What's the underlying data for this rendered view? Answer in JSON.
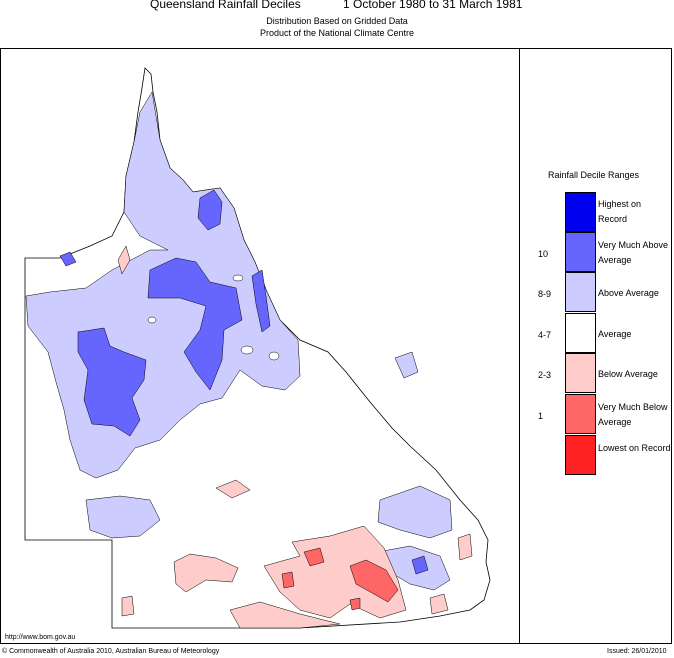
{
  "header": {
    "title": "Queensland Rainfall Deciles",
    "period": "1 October 1980 to 31 March 1981",
    "subtitle1": "Distribution Based on Gridded Data",
    "subtitle2": "Product of the National Climate Centre"
  },
  "legend": {
    "title": "Rainfall Decile Ranges",
    "items": [
      {
        "range": "",
        "label": "Highest on Record",
        "color": "#0000ee"
      },
      {
        "range": "10",
        "label": "Very Much Above Average",
        "color": "#6666ff"
      },
      {
        "range": "8-9",
        "label": "Above Average",
        "color": "#ccccff"
      },
      {
        "range": "4-7",
        "label": "Average",
        "color": "#ffffff"
      },
      {
        "range": "2-3",
        "label": "Below Average",
        "color": "#ffcccc"
      },
      {
        "range": "1",
        "label": "Very Much Below Average",
        "color": "#ff6666"
      },
      {
        "range": "",
        "label": "Lowest on Record",
        "color": "#ff2222"
      }
    ]
  },
  "footer": {
    "url": "http://www.bom.gov.au",
    "copyright": "© Commonwealth of Australia 2010, Australian Bureau of Meteorology",
    "issued": "Issued: 26/01/2010"
  }
}
